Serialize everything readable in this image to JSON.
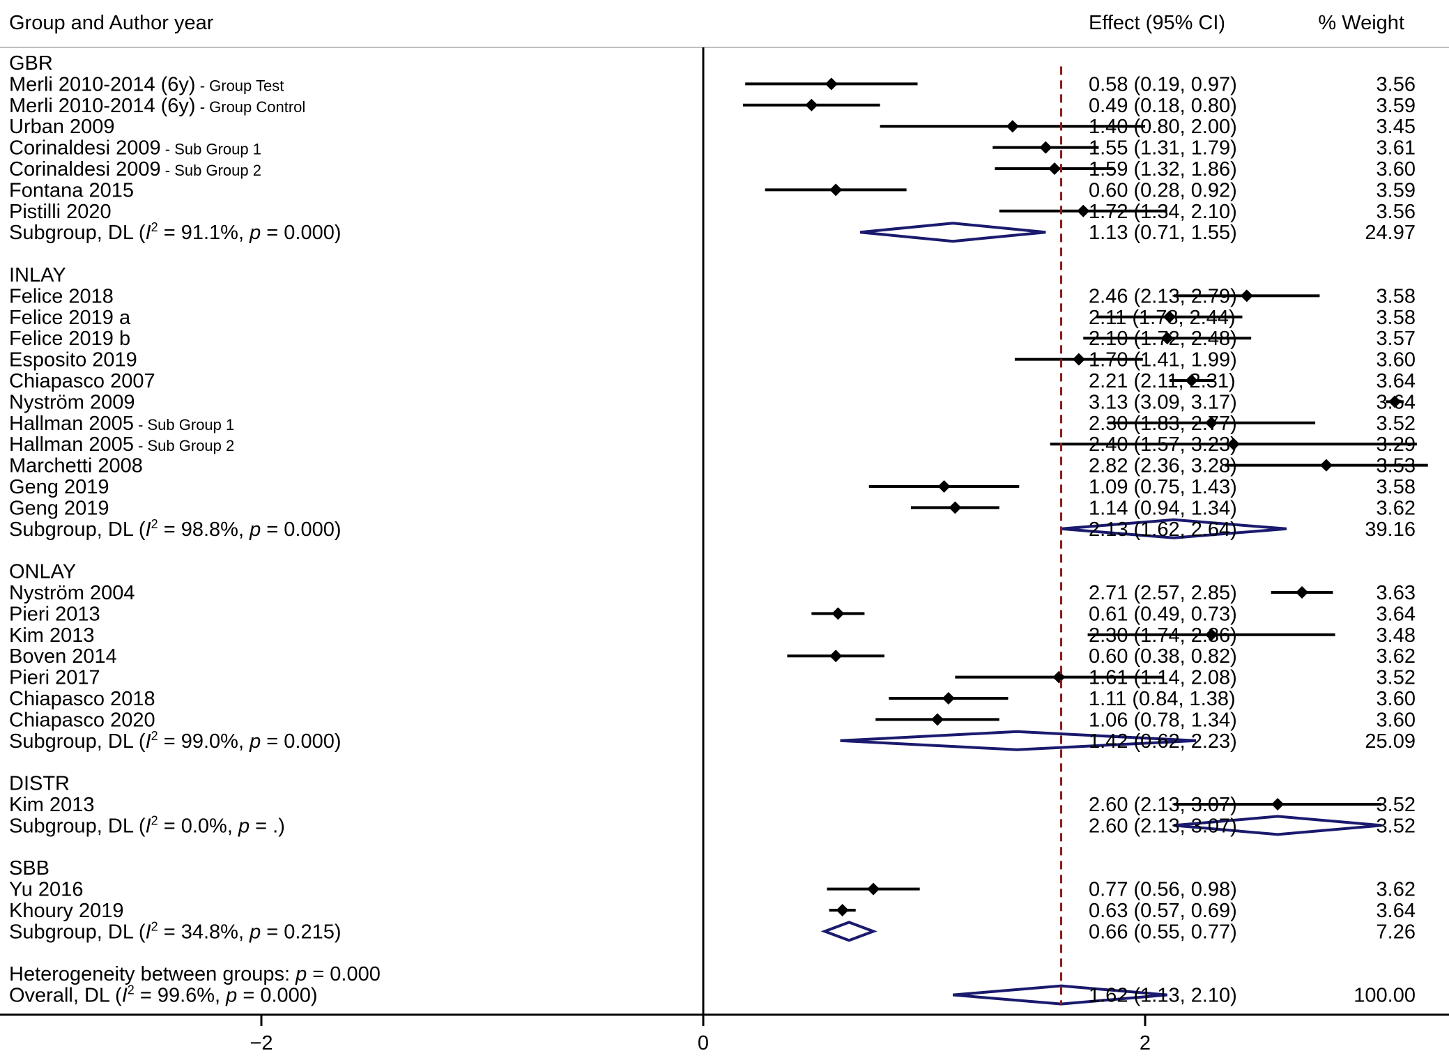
{
  "header": {
    "study_col": "Group and Author year",
    "effect_col": "Effect (95% CI)",
    "weight_col": "% Weight"
  },
  "chart_data": {
    "type": "forest",
    "xlim": [
      -3.2,
      3.3
    ],
    "null_line": 0,
    "overall_line": 1.62,
    "x_ticks": [
      {
        "value": -2,
        "label": "−2"
      },
      {
        "value": 0,
        "label": "0"
      },
      {
        "value": 2,
        "label": "2"
      }
    ],
    "colors": {
      "study": "#000000",
      "diamond": "#1a1a6e",
      "overall_line": "#8b1a1a",
      "axis": "#000000",
      "header_rule": "#bfbfbf"
    },
    "groups": [
      {
        "label": "GBR",
        "studies": [
          {
            "name": "Merli 2010-2014 (6y)",
            "note": "- Group Test",
            "effect": 0.58,
            "lo": 0.19,
            "hi": 0.97,
            "ci_text": "0.58 (0.19, 0.97)",
            "weight": "3.56"
          },
          {
            "name": "Merli 2010-2014 (6y)",
            "note": "- Group Control",
            "effect": 0.49,
            "lo": 0.18,
            "hi": 0.8,
            "ci_text": "0.49 (0.18, 0.80)",
            "weight": "3.59"
          },
          {
            "name": "Urban 2009",
            "note": "",
            "effect": 1.4,
            "lo": 0.8,
            "hi": 2.0,
            "ci_text": "1.40 (0.80, 2.00)",
            "weight": "3.45"
          },
          {
            "name": "Corinaldesi 2009",
            "note": "- Sub Group 1",
            "effect": 1.55,
            "lo": 1.31,
            "hi": 1.79,
            "ci_text": "1.55 (1.31, 1.79)",
            "weight": "3.61"
          },
          {
            "name": "Corinaldesi 2009",
            "note": "- Sub Group 2",
            "effect": 1.59,
            "lo": 1.32,
            "hi": 1.86,
            "ci_text": "1.59 (1.32, 1.86)",
            "weight": "3.60"
          },
          {
            "name": "Fontana 2015",
            "note": "",
            "effect": 0.6,
            "lo": 0.28,
            "hi": 0.92,
            "ci_text": "0.60 (0.28, 0.92)",
            "weight": "3.59"
          },
          {
            "name": "Pistilli 2020",
            "note": "",
            "effect": 1.72,
            "lo": 1.34,
            "hi": 2.1,
            "ci_text": "1.72 (1.34, 2.10)",
            "weight": "3.56"
          }
        ],
        "subgroup": {
          "i2": "91.1",
          "p": "0.000",
          "effect": 1.13,
          "lo": 0.71,
          "hi": 1.55,
          "ci_text": "1.13 (0.71, 1.55)",
          "weight": "24.97"
        }
      },
      {
        "label": "INLAY",
        "studies": [
          {
            "name": "Felice 2018",
            "note": "",
            "effect": 2.46,
            "lo": 2.13,
            "hi": 2.79,
            "ci_text": "2.46 (2.13, 2.79)",
            "weight": "3.58"
          },
          {
            "name": "Felice 2019 a",
            "note": "",
            "effect": 2.11,
            "lo": 1.78,
            "hi": 2.44,
            "ci_text": "2.11 (1.78, 2.44)",
            "weight": "3.58"
          },
          {
            "name": "Felice 2019 b",
            "note": "",
            "effect": 2.1,
            "lo": 1.72,
            "hi": 2.48,
            "ci_text": "2.10 (1.72, 2.48)",
            "weight": "3.57"
          },
          {
            "name": "Esposito 2019",
            "note": "",
            "effect": 1.7,
            "lo": 1.41,
            "hi": 1.99,
            "ci_text": "1.70 (1.41, 1.99)",
            "weight": "3.60"
          },
          {
            "name": "Chiapasco 2007",
            "note": "",
            "effect": 2.21,
            "lo": 2.11,
            "hi": 2.31,
            "ci_text": "2.21 (2.11, 2.31)",
            "weight": "3.64"
          },
          {
            "name": "Nyström 2009",
            "note": "",
            "effect": 3.13,
            "lo": 3.09,
            "hi": 3.17,
            "ci_text": "3.13 (3.09, 3.17)",
            "weight": "3.64"
          },
          {
            "name": "Hallman 2005",
            "note": "- Sub Group 1",
            "effect": 2.3,
            "lo": 1.83,
            "hi": 2.77,
            "ci_text": "2.30 (1.83, 2.77)",
            "weight": "3.52"
          },
          {
            "name": "Hallman 2005",
            "note": "- Sub Group 2",
            "effect": 2.4,
            "lo": 1.57,
            "hi": 3.23,
            "ci_text": "2.40 (1.57, 3.23)",
            "weight": "3.29"
          },
          {
            "name": "Marchetti 2008",
            "note": "",
            "effect": 2.82,
            "lo": 2.36,
            "hi": 3.28,
            "ci_text": "2.82 (2.36, 3.28)",
            "weight": "3.53"
          },
          {
            "name": "Geng 2019",
            "note": "",
            "effect": 1.09,
            "lo": 0.75,
            "hi": 1.43,
            "ci_text": "1.09 (0.75, 1.43)",
            "weight": "3.58"
          },
          {
            "name": "Geng 2019",
            "note": "",
            "effect": 1.14,
            "lo": 0.94,
            "hi": 1.34,
            "ci_text": "1.14 (0.94, 1.34)",
            "weight": "3.62"
          }
        ],
        "subgroup": {
          "i2": "98.8",
          "p": "0.000",
          "effect": 2.13,
          "lo": 1.62,
          "hi": 2.64,
          "ci_text": "2.13 (1.62, 2.64)",
          "weight": "39.16"
        }
      },
      {
        "label": "ONLAY",
        "studies": [
          {
            "name": "Nyström 2004",
            "note": "",
            "effect": 2.71,
            "lo": 2.57,
            "hi": 2.85,
            "ci_text": "2.71 (2.57, 2.85)",
            "weight": "3.63"
          },
          {
            "name": "Pieri 2013",
            "note": "",
            "effect": 0.61,
            "lo": 0.49,
            "hi": 0.73,
            "ci_text": "0.61 (0.49, 0.73)",
            "weight": "3.64"
          },
          {
            "name": "Kim 2013",
            "note": "",
            "effect": 2.3,
            "lo": 1.74,
            "hi": 2.86,
            "ci_text": "2.30 (1.74, 2.86)",
            "weight": "3.48"
          },
          {
            "name": "Boven 2014",
            "note": "",
            "effect": 0.6,
            "lo": 0.38,
            "hi": 0.82,
            "ci_text": "0.60 (0.38, 0.82)",
            "weight": "3.62"
          },
          {
            "name": "Pieri 2017",
            "note": "",
            "effect": 1.61,
            "lo": 1.14,
            "hi": 2.08,
            "ci_text": "1.61 (1.14, 2.08)",
            "weight": "3.52"
          },
          {
            "name": "Chiapasco 2018",
            "note": "",
            "effect": 1.11,
            "lo": 0.84,
            "hi": 1.38,
            "ci_text": "1.11 (0.84, 1.38)",
            "weight": "3.60"
          },
          {
            "name": "Chiapasco 2020",
            "note": "",
            "effect": 1.06,
            "lo": 0.78,
            "hi": 1.34,
            "ci_text": "1.06 (0.78, 1.34)",
            "weight": "3.60"
          }
        ],
        "subgroup": {
          "i2": "99.0",
          "p": "0.000",
          "effect": 1.42,
          "lo": 0.62,
          "hi": 2.23,
          "ci_text": "1.42 (0.62, 2.23)",
          "weight": "25.09"
        }
      },
      {
        "label": "DISTR",
        "studies": [
          {
            "name": "Kim 2013",
            "note": "",
            "effect": 2.6,
            "lo": 2.13,
            "hi": 3.07,
            "ci_text": "2.60 (2.13, 3.07)",
            "weight": "3.52"
          }
        ],
        "subgroup": {
          "i2": "0.0",
          "p": ".",
          "effect": 2.6,
          "lo": 2.13,
          "hi": 3.07,
          "ci_text": "2.60 (2.13, 3.07)",
          "weight": "3.52"
        }
      },
      {
        "label": "SBB",
        "studies": [
          {
            "name": "Yu 2016",
            "note": "",
            "effect": 0.77,
            "lo": 0.56,
            "hi": 0.98,
            "ci_text": "0.77 (0.56, 0.98)",
            "weight": "3.62"
          },
          {
            "name": "Khoury 2019",
            "note": "",
            "effect": 0.63,
            "lo": 0.57,
            "hi": 0.69,
            "ci_text": "0.63 (0.57, 0.69)",
            "weight": "3.64"
          }
        ],
        "subgroup": {
          "i2": "34.8",
          "p": "0.215",
          "effect": 0.66,
          "lo": 0.55,
          "hi": 0.77,
          "ci_text": "0.66 (0.55, 0.77)",
          "weight": "7.26"
        }
      }
    ],
    "subgroup_label": "Subgroup, DL",
    "heterogeneity": {
      "label": "Heterogeneity between groups:",
      "p": "0.000"
    },
    "overall": {
      "label": "Overall, DL",
      "i2": "99.6",
      "p": "0.000",
      "effect": 1.62,
      "lo": 1.13,
      "hi": 2.1,
      "ci_text": "1.62 (1.13, 2.10)",
      "weight": "100.00"
    }
  }
}
